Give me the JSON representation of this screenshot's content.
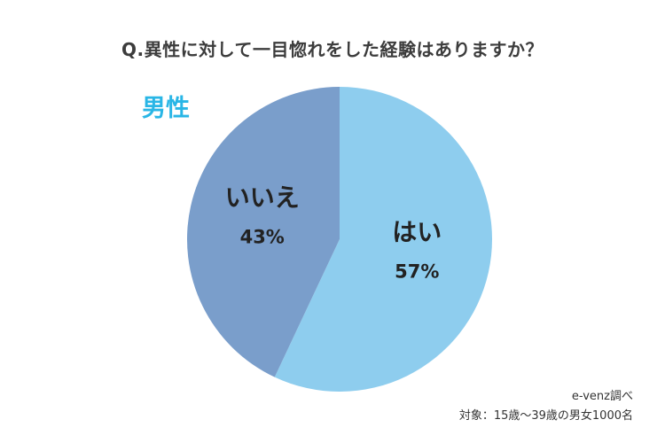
{
  "chart_data": {
    "type": "pie",
    "title": "Q.異性に対して一目惚れをした経験はありますか？",
    "subtitle": "男性",
    "categories": [
      "はい",
      "いいえ"
    ],
    "values": [
      57,
      43
    ],
    "value_labels": [
      "57%",
      "43%"
    ],
    "colors": [
      "#8ecdee",
      "#7a9ecb"
    ],
    "start_angle_deg": 0,
    "direction": "clockwise"
  },
  "footer": {
    "source": "e-venz調べ",
    "target": "対象：15歳〜39歳の男女1000名"
  }
}
